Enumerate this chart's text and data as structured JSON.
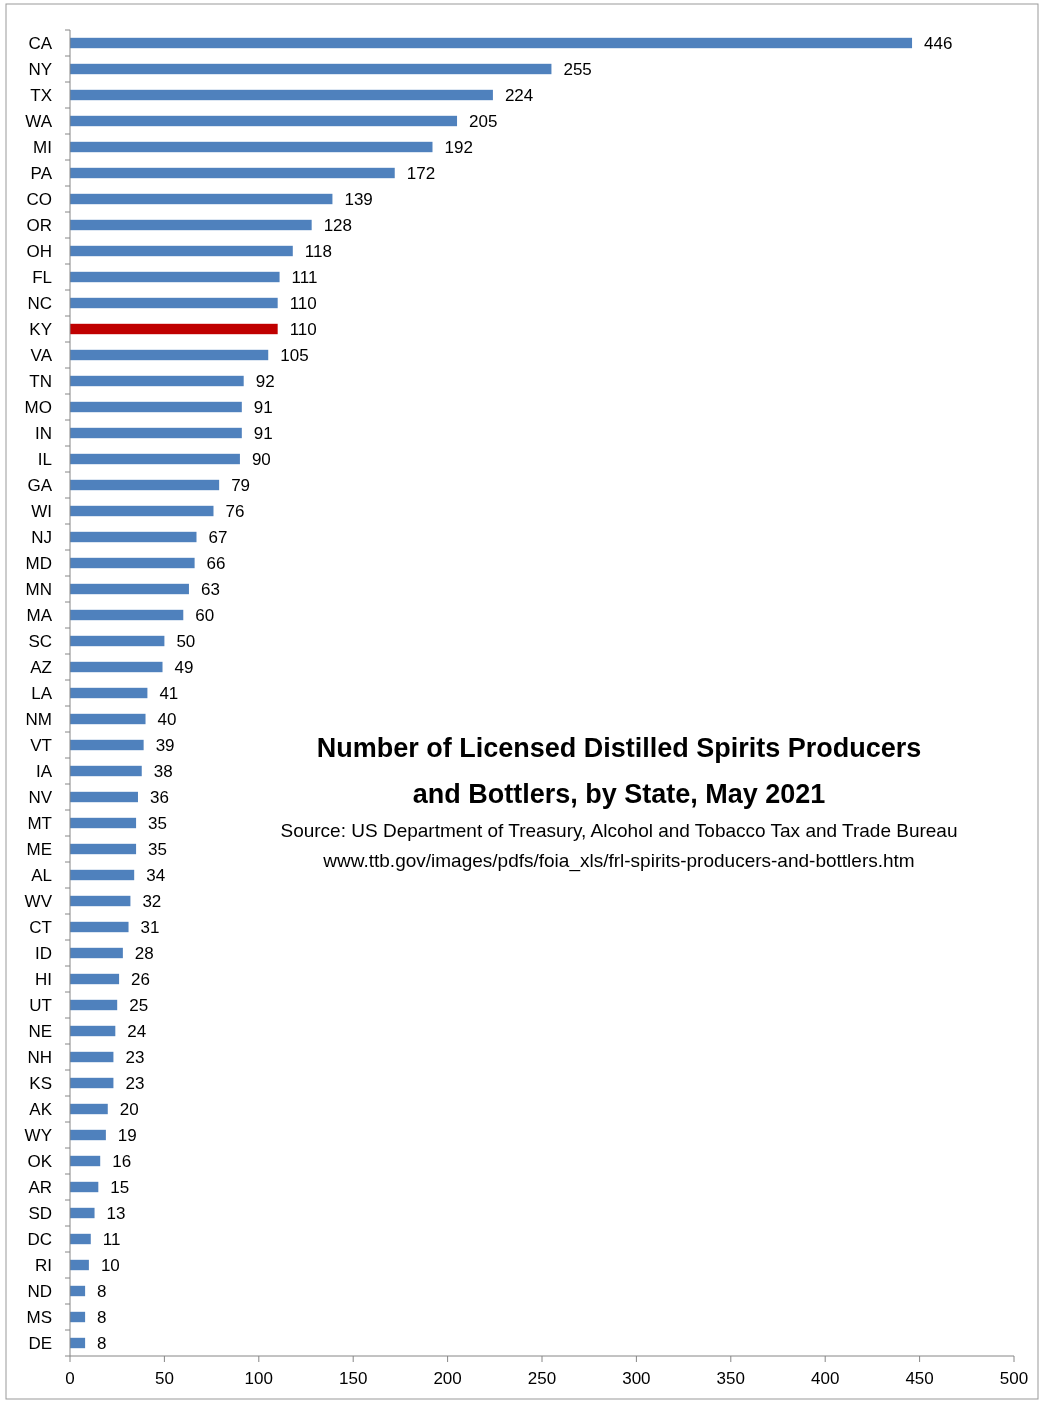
{
  "chart_data": {
    "type": "bar",
    "orientation": "horizontal",
    "title": "Number of Licensed Distilled Spirits Producers and Bottlers, by State, May 2021",
    "annotations": [
      "Source: US Department of Treasury, Alcohol and Tobacco Tax and Trade Bureau",
      "www.ttb.gov/images/pdfs/foia_xls/frl-spirits-producers-and-bottlers.htm"
    ],
    "categories": [
      "CA",
      "NY",
      "TX",
      "WA",
      "MI",
      "PA",
      "CO",
      "OR",
      "OH",
      "FL",
      "NC",
      "KY",
      "VA",
      "TN",
      "MO",
      "IN",
      "IL",
      "GA",
      "WI",
      "NJ",
      "MD",
      "MN",
      "MA",
      "SC",
      "AZ",
      "LA",
      "NM",
      "VT",
      "IA",
      "NV",
      "MT",
      "ME",
      "AL",
      "WV",
      "CT",
      "ID",
      "HI",
      "UT",
      "NE",
      "NH",
      "KS",
      "AK",
      "WY",
      "OK",
      "AR",
      "SD",
      "DC",
      "RI",
      "ND",
      "MS",
      "DE"
    ],
    "values": [
      446,
      255,
      224,
      205,
      192,
      172,
      139,
      128,
      118,
      111,
      110,
      110,
      105,
      92,
      91,
      91,
      90,
      79,
      76,
      67,
      66,
      63,
      60,
      50,
      49,
      41,
      40,
      39,
      38,
      36,
      35,
      35,
      34,
      32,
      31,
      28,
      26,
      25,
      24,
      23,
      23,
      20,
      19,
      16,
      15,
      13,
      11,
      10,
      8,
      8,
      8
    ],
    "colors": [
      "#4f81bd",
      "#4f81bd",
      "#4f81bd",
      "#4f81bd",
      "#4f81bd",
      "#4f81bd",
      "#4f81bd",
      "#4f81bd",
      "#4f81bd",
      "#4f81bd",
      "#4f81bd",
      "#c00000",
      "#4f81bd",
      "#4f81bd",
      "#4f81bd",
      "#4f81bd",
      "#4f81bd",
      "#4f81bd",
      "#4f81bd",
      "#4f81bd",
      "#4f81bd",
      "#4f81bd",
      "#4f81bd",
      "#4f81bd",
      "#4f81bd",
      "#4f81bd",
      "#4f81bd",
      "#4f81bd",
      "#4f81bd",
      "#4f81bd",
      "#4f81bd",
      "#4f81bd",
      "#4f81bd",
      "#4f81bd",
      "#4f81bd",
      "#4f81bd",
      "#4f81bd",
      "#4f81bd",
      "#4f81bd",
      "#4f81bd",
      "#4f81bd",
      "#4f81bd",
      "#4f81bd",
      "#4f81bd",
      "#4f81bd",
      "#4f81bd",
      "#4f81bd",
      "#4f81bd",
      "#4f81bd",
      "#4f81bd",
      "#4f81bd"
    ],
    "xlim": [
      0,
      500
    ],
    "xticks": [
      0,
      50,
      100,
      150,
      200,
      250,
      300,
      350,
      400,
      450,
      500
    ],
    "data_labels": true
  }
}
